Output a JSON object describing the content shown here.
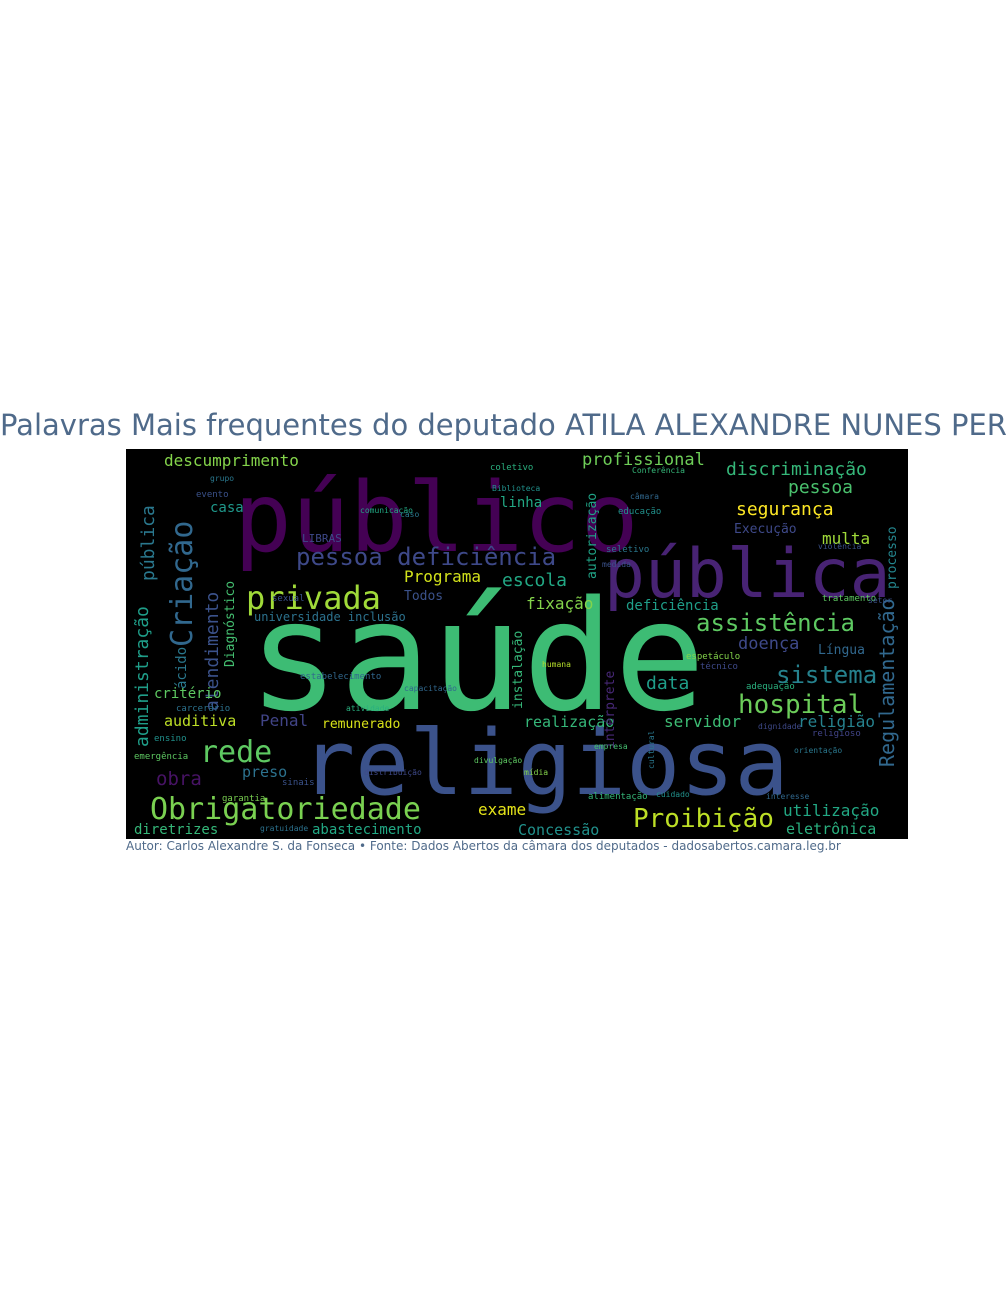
{
  "title": "Palavras Mais frequentes do deputado ATILA ALEXANDRE NUNES PEREIRA",
  "credit": "Autor: Carlos Alexandre S. da Fonseca • Fonte: Dados Abertos da câmara dos deputados - dadosabertos.camara.leg.br",
  "colors": {
    "background": "#000000",
    "title": "#4f6a8a",
    "palette": [
      "#440154",
      "#3b528b",
      "#21918c",
      "#5ec962",
      "#fde725"
    ]
  },
  "words": [
    {
      "text": "saúde",
      "color": "#3dbc74"
    },
    {
      "text": "público",
      "color": "#440154"
    },
    {
      "text": "religiosa",
      "color": "#3b528b"
    },
    {
      "text": "pública",
      "color": "#482374"
    },
    {
      "text": "Obrigatoriedade",
      "color": "#7ad151"
    },
    {
      "text": "privada",
      "color": "#a0da39"
    },
    {
      "text": "pessoa deficiência",
      "color": "#3e4989"
    },
    {
      "text": "Criação",
      "color": "#31688e"
    },
    {
      "text": "rede",
      "color": "#5ec962"
    },
    {
      "text": "hospital",
      "color": "#6ccd5a"
    },
    {
      "text": "assistência",
      "color": "#5ec962"
    },
    {
      "text": "sistema",
      "color": "#26828e"
    },
    {
      "text": "Proibição",
      "color": "#bddf26"
    },
    {
      "text": "Regulamentação",
      "color": "#31688e"
    },
    {
      "text": "administração",
      "color": "#1f9e89"
    },
    {
      "text": "atendimento",
      "color": "#3b528b"
    },
    {
      "text": "pública",
      "color": "#2a788e"
    },
    {
      "text": "discriminação",
      "color": "#35b779"
    },
    {
      "text": "profissional",
      "color": "#6ece58"
    },
    {
      "text": "descumprimento",
      "color": "#84d44b"
    },
    {
      "text": "pessoa",
      "color": "#4ac16d"
    },
    {
      "text": "segurança",
      "color": "#fde725"
    },
    {
      "text": "multa",
      "color": "#a0da39"
    },
    {
      "text": "escola",
      "color": "#22a884"
    },
    {
      "text": "Programa",
      "color": "#d2e21b"
    },
    {
      "text": "fixação",
      "color": "#84d44b"
    },
    {
      "text": "deficiência",
      "color": "#1f9e89"
    },
    {
      "text": "doença",
      "color": "#3e4989"
    },
    {
      "text": "data",
      "color": "#1f9e89"
    },
    {
      "text": "utilização",
      "color": "#22a884"
    },
    {
      "text": "eletrônica",
      "color": "#2ab07f"
    },
    {
      "text": "Concessão",
      "color": "#21918c"
    },
    {
      "text": "exame",
      "color": "#e5e419"
    },
    {
      "text": "servidor",
      "color": "#3dbc74"
    },
    {
      "text": "realização",
      "color": "#35b779"
    },
    {
      "text": "religião",
      "color": "#26828e"
    },
    {
      "text": "auditiva",
      "color": "#bddf26"
    },
    {
      "text": "Penal",
      "color": "#414487"
    },
    {
      "text": "remunerado",
      "color": "#d8e219"
    },
    {
      "text": "preso",
      "color": "#2c728e"
    },
    {
      "text": "obra",
      "color": "#471365"
    },
    {
      "text": "diretrizes",
      "color": "#35b779"
    },
    {
      "text": "abastecimento",
      "color": "#22a884"
    },
    {
      "text": "critério",
      "color": "#5ec962"
    },
    {
      "text": "ácido",
      "color": "#2a788e"
    },
    {
      "text": "Diagnóstico",
      "color": "#44bf70"
    },
    {
      "text": "casa",
      "color": "#1f988b"
    },
    {
      "text": "linha",
      "color": "#22a884"
    },
    {
      "text": "autorização",
      "color": "#20a386"
    },
    {
      "text": "instalação",
      "color": "#35b779"
    },
    {
      "text": "intérprete",
      "color": "#482878"
    },
    {
      "text": "Língua",
      "color": "#31688e"
    },
    {
      "text": "Execução",
      "color": "#3e4989"
    },
    {
      "text": "processo",
      "color": "#24868e"
    },
    {
      "text": "universidade inclusão",
      "color": "#2c728e"
    },
    {
      "text": "LIBRAS",
      "color": "#3e4989"
    },
    {
      "text": "Todos",
      "color": "#3b528b"
    },
    {
      "text": "coletivo",
      "color": "#2ab07f"
    },
    {
      "text": "ensino",
      "color": "#21918c"
    },
    {
      "text": "emergência",
      "color": "#5ec962"
    },
    {
      "text": "garantia",
      "color": "#7ad151"
    },
    {
      "text": "carcerário",
      "color": "#2c728e"
    },
    {
      "text": "religioso",
      "color": "#414487"
    },
    {
      "text": "sexual",
      "color": "#3b528b"
    },
    {
      "text": "evento",
      "color": "#3b528b"
    },
    {
      "text": "grupo",
      "color": "#2a788e"
    },
    {
      "text": "estabelecimento",
      "color": "#31688e"
    },
    {
      "text": "tratamento",
      "color": "#5ec962"
    },
    {
      "text": "espetáculo",
      "color": "#84d44b"
    },
    {
      "text": "técnico",
      "color": "#3e4989"
    },
    {
      "text": "adequação",
      "color": "#2ab07f"
    },
    {
      "text": "alimentação",
      "color": "#35b779"
    },
    {
      "text": "educação",
      "color": "#21918c"
    },
    {
      "text": "seletivo",
      "color": "#2a788e"
    },
    {
      "text": "capacitação",
      "color": "#31688e"
    },
    {
      "text": "orientação",
      "color": "#2a788e"
    },
    {
      "text": "atividade",
      "color": "#2ab07f"
    },
    {
      "text": "Biblioteca",
      "color": "#21918c"
    },
    {
      "text": "medida",
      "color": "#3b528b"
    },
    {
      "text": "sinais",
      "color": "#3b528b"
    },
    {
      "text": "humana",
      "color": "#b5de2b"
    },
    {
      "text": "cultural",
      "color": "#2a788e"
    },
    {
      "text": "comunicação",
      "color": "#22a884"
    },
    {
      "text": "distribuição",
      "color": "#3e4989"
    },
    {
      "text": "gratuidade",
      "color": "#2c728e"
    },
    {
      "text": "interesse",
      "color": "#31688e"
    },
    {
      "text": "cuidado",
      "color": "#21918c"
    },
    {
      "text": "Conferência",
      "color": "#35b779"
    },
    {
      "text": "caso",
      "color": "#2a788e"
    },
    {
      "text": "violência",
      "color": "#3b528b"
    },
    {
      "text": "dignidade",
      "color": "#3e4989"
    },
    {
      "text": "setor",
      "color": "#3b528b"
    },
    {
      "text": "divulgação",
      "color": "#5ec962"
    },
    {
      "text": "empresa",
      "color": "#44bf70"
    },
    {
      "text": "mídia",
      "color": "#84d44b"
    },
    {
      "text": "câmara",
      "color": "#31688e"
    }
  ]
}
